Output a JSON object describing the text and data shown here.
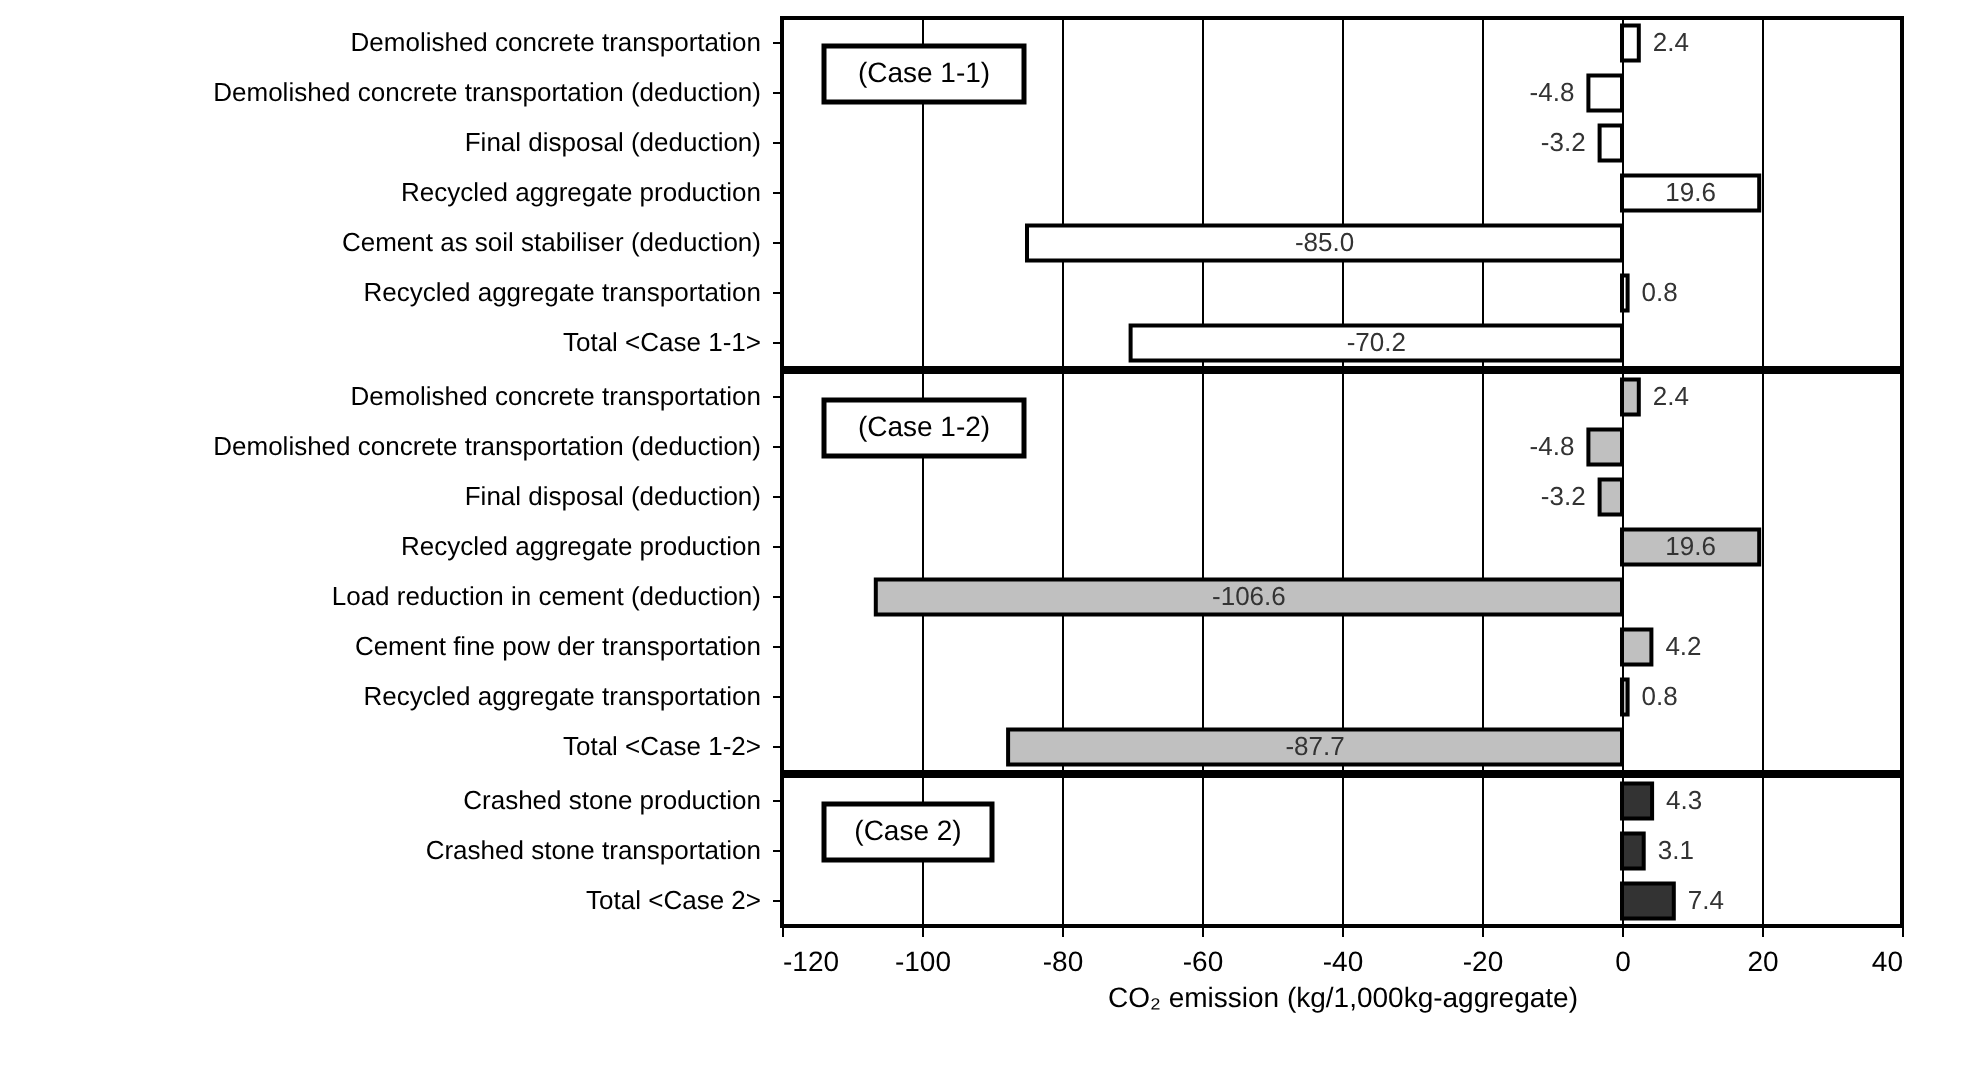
{
  "chart_data": [
    {
      "type": "bar",
      "orientation": "horizontal",
      "categories": [
        "Demolished concrete transportation",
        "Demolished concrete transportation (deduction)",
        "Final disposal (deduction)",
        "Recycled aggregate production",
        "Cement as soil stabiliser (deduction)",
        "Recycled aggregate transportation",
        "Total  <Case 1-1>"
      ],
      "values": [
        2.4,
        -4.8,
        -3.2,
        19.6,
        -85.0,
        0.8,
        -70.2
      ],
      "value_labels": [
        "2.4",
        "-4.8",
        "-3.2",
        "19.6",
        "-85.0",
        "0.8",
        "-70.2"
      ],
      "color": "#ffffff",
      "xlim": [
        -120,
        40
      ],
      "xticks": [
        -120,
        -100,
        -80,
        -60,
        -40,
        -20,
        0,
        20,
        40
      ],
      "grid": "x",
      "tick_labels": "y",
      "annotations": [
        "(Case 1-1)"
      ]
    },
    {
      "type": "bar",
      "orientation": "horizontal",
      "categories": [
        "Demolished concrete transportation",
        "Demolished concrete transportation (deduction)",
        "Final disposal (deduction)",
        "Recycled aggregate production",
        "Load reduction in cement (deduction)",
        "Cement fine pow der transportation",
        "Recycled aggregate transportation",
        "Total  <Case 1-2>"
      ],
      "values": [
        2.4,
        -4.8,
        -3.2,
        19.6,
        -106.6,
        4.2,
        0.8,
        -87.7
      ],
      "value_labels": [
        "2.4",
        "-4.8",
        "-3.2",
        "19.6",
        "-106.6",
        "4.2",
        "0.8",
        "-87.7"
      ],
      "color": "#c0c0c0",
      "xlim": [
        -120,
        40
      ],
      "xticks": [
        -120,
        -100,
        -80,
        -60,
        -40,
        -20,
        0,
        20,
        40
      ],
      "grid": "x",
      "tick_labels": "y",
      "annotations": [
        "(Case 1-2)"
      ]
    },
    {
      "type": "bar",
      "orientation": "horizontal",
      "categories": [
        "Crashed stone production",
        "Crashed stone transportation",
        "Total  <Case 2>"
      ],
      "values": [
        4.3,
        3.1,
        7.4
      ],
      "value_labels": [
        "4.3",
        "3.1",
        "7.4"
      ],
      "color": "#333333",
      "xlim": [
        -120,
        40
      ],
      "xticks": [
        -120,
        -100,
        -80,
        -60,
        -40,
        -20,
        0,
        20,
        40
      ],
      "grid": "x",
      "xlabel": "CO₂ emission (kg/1,000kg-aggregate)",
      "annotations": [
        "(Case 2)"
      ]
    }
  ]
}
